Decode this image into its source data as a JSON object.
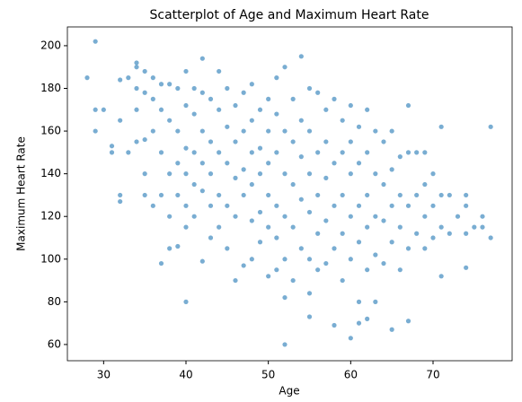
{
  "chart_data": {
    "type": "scatter",
    "title": "Scatterplot of Age and Maximum Heart Rate",
    "x_label": "Age",
    "y_label": "Maximum Heart Rate",
    "color": "#1f77b4",
    "xlim": [
      25.6,
      79.6
    ],
    "ylim": [
      52.4,
      208.8
    ],
    "xticks": [
      30,
      40,
      50,
      60,
      70
    ],
    "yticks": [
      60,
      80,
      100,
      120,
      140,
      160,
      180,
      200
    ],
    "x": [
      28,
      29,
      29,
      29,
      30,
      31,
      31,
      32,
      32,
      32,
      32,
      33,
      33,
      34,
      34,
      34,
      34,
      34,
      35,
      35,
      35,
      35,
      35,
      36,
      36,
      36,
      36,
      37,
      37,
      37,
      37,
      37,
      38,
      38,
      38,
      38,
      38,
      39,
      39,
      39,
      39,
      39,
      40,
      40,
      40,
      40,
      40,
      40,
      40,
      41,
      41,
      41,
      41,
      41,
      42,
      42,
      42,
      42,
      42,
      42,
      43,
      43,
      43,
      43,
      43,
      44,
      44,
      44,
      44,
      44,
      45,
      45,
      45,
      45,
      45,
      46,
      46,
      46,
      46,
      46,
      47,
      47,
      47,
      47,
      47,
      48,
      48,
      48,
      48,
      48,
      48,
      49,
      49,
      49,
      49,
      49,
      50,
      50,
      50,
      50,
      50,
      50,
      51,
      51,
      51,
      51,
      51,
      51,
      52,
      52,
      52,
      52,
      52,
      52,
      52,
      53,
      53,
      53,
      53,
      53,
      54,
      54,
      54,
      54,
      54,
      55,
      55,
      55,
      55,
      55,
      55,
      55,
      56,
      56,
      56,
      56,
      56,
      57,
      57,
      57,
      57,
      57,
      58,
      58,
      58,
      58,
      58,
      59,
      59,
      59,
      59,
      59,
      60,
      60,
      60,
      60,
      60,
      60,
      61,
      61,
      61,
      61,
      61,
      61,
      62,
      62,
      62,
      62,
      62,
      62,
      63,
      63,
      63,
      63,
      63,
      64,
      64,
      64,
      64,
      65,
      65,
      65,
      65,
      65,
      66,
      66,
      66,
      66,
      67,
      67,
      67,
      67,
      67,
      68,
      68,
      68,
      69,
      69,
      69,
      69,
      70,
      70,
      70,
      71,
      71,
      71,
      71,
      72,
      72,
      73,
      74,
      74,
      74,
      74,
      75,
      76,
      76,
      77,
      77
    ],
    "values": [
      185,
      202,
      170,
      160,
      170,
      153,
      150,
      184,
      165,
      130,
      127,
      185,
      150,
      192,
      190,
      180,
      170,
      155,
      188,
      178,
      156,
      140,
      130,
      185,
      175,
      160,
      125,
      182,
      170,
      150,
      130,
      98,
      182,
      165,
      140,
      120,
      105,
      180,
      160,
      145,
      130,
      106,
      188,
      172,
      152,
      140,
      125,
      115,
      80,
      180,
      168,
      150,
      135,
      120,
      194,
      178,
      160,
      145,
      132,
      99,
      175,
      155,
      140,
      125,
      110,
      188,
      170,
      150,
      130,
      115,
      180,
      162,
      145,
      125,
      105,
      172,
      155,
      138,
      120,
      90,
      178,
      160,
      142,
      130,
      97,
      182,
      165,
      150,
      135,
      118,
      100,
      170,
      152,
      140,
      122,
      108,
      175,
      160,
      145,
      130,
      115,
      92,
      185,
      168,
      150,
      125,
      110,
      95,
      190,
      160,
      140,
      120,
      100,
      82,
      60,
      175,
      155,
      135,
      115,
      90,
      195,
      165,
      148,
      128,
      105,
      180,
      160,
      140,
      122,
      100,
      73,
      84,
      178,
      150,
      130,
      112,
      95,
      170,
      155,
      138,
      118,
      98,
      175,
      145,
      125,
      105,
      69,
      165,
      150,
      130,
      112,
      90,
      172,
      155,
      140,
      120,
      100,
      63,
      162,
      145,
      125,
      108,
      80,
      70,
      170,
      150,
      130,
      115,
      95,
      72,
      160,
      140,
      120,
      102,
      80,
      155,
      135,
      118,
      98,
      160,
      142,
      125,
      108,
      67,
      148,
      130,
      115,
      95,
      172,
      150,
      125,
      105,
      71,
      150,
      130,
      112,
      150,
      135,
      120,
      105,
      140,
      125,
      110,
      162,
      130,
      115,
      92,
      130,
      112,
      120,
      130,
      125,
      112,
      96,
      115,
      120,
      115,
      162,
      110
    ]
  }
}
